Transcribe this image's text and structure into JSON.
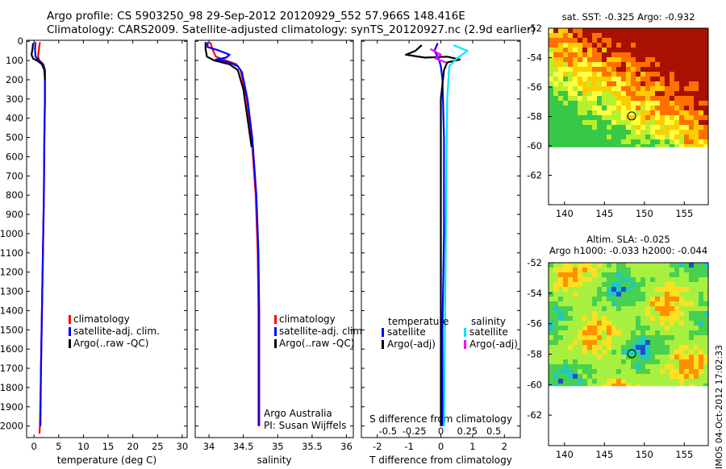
{
  "title_line1": "Argo profile: CS 5903250_98 29-Sep-2012 20120929_552 57.966S 148.416E",
  "title_line2": "Climatology: CARS2009. Satellite-adjusted climatology: synTS_20120927.nc (2.9d earlier)",
  "watermark": "IMOS 04-Oct-2012 17:02:33",
  "colors": {
    "climatology": "#ff0000",
    "satellite": "#0000ff",
    "argo": "#000000",
    "salinity_satellite": "#00e5ff",
    "salinity_argo": "#ff00ff"
  },
  "chart_data": [
    {
      "type": "line",
      "name": "temperature",
      "xlabel": "temperature (deg C)",
      "ylabel": "",
      "xlim": [
        -1.5,
        31
      ],
      "ylim": [
        2060,
        -5
      ],
      "xticks": [
        0,
        5,
        10,
        15,
        20,
        25,
        30
      ],
      "yticks": [
        0,
        100,
        200,
        300,
        400,
        500,
        600,
        700,
        800,
        900,
        1000,
        1100,
        1200,
        1300,
        1400,
        1500,
        1600,
        1700,
        1800,
        1900,
        2000
      ],
      "legend": [
        "climatology",
        "satellite-adj. clim.",
        "Argo(..raw -QC)"
      ],
      "series": [
        {
          "name": "climatology",
          "points": [
            [
              1.2,
              5
            ],
            [
              1.0,
              40
            ],
            [
              0.8,
              80
            ],
            [
              1.1,
              100
            ],
            [
              1.9,
              120
            ],
            [
              2.2,
              150
            ],
            [
              2.2,
              300
            ],
            [
              2.1,
              500
            ],
            [
              2.0,
              800
            ],
            [
              1.8,
              1100
            ],
            [
              1.6,
              1400
            ],
            [
              1.4,
              1700
            ],
            [
              1.2,
              2000
            ],
            [
              1.1,
              2040
            ]
          ]
        },
        {
          "name": "satellite-adj. clim.",
          "points": [
            [
              0.3,
              5
            ],
            [
              0.2,
              40
            ],
            [
              0.3,
              80
            ],
            [
              1.0,
              100
            ],
            [
              1.8,
              120
            ],
            [
              2.2,
              150
            ],
            [
              2.2,
              300
            ],
            [
              2.1,
              500
            ],
            [
              2.0,
              800
            ],
            [
              1.8,
              1100
            ],
            [
              1.6,
              1400
            ],
            [
              1.4,
              1700
            ],
            [
              1.3,
              2000
            ]
          ]
        },
        {
          "name": "Argo(..raw -QC)",
          "points": [
            [
              -0.2,
              10
            ],
            [
              -0.3,
              40
            ],
            [
              -0.5,
              70
            ],
            [
              -0.2,
              90
            ],
            [
              0.6,
              100
            ],
            [
              1.6,
              120
            ],
            [
              2.1,
              150
            ],
            [
              2.2,
              200
            ]
          ]
        }
      ]
    },
    {
      "type": "line",
      "name": "salinity",
      "xlabel": "salinity",
      "ylabel": "",
      "xlim": [
        33.8,
        36.1
      ],
      "ylim": [
        2060,
        -5
      ],
      "xticks": [
        34,
        34.5,
        35,
        35.5,
        36
      ],
      "legend": [
        "climatology",
        "satellite-adj. clim.",
        "Argo(..raw -QC)"
      ],
      "annotation": [
        "Argo Australia",
        "PI: Susan Wijffels"
      ],
      "series": [
        {
          "name": "climatology",
          "points": [
            [
              34.02,
              5
            ],
            [
              34.05,
              40
            ],
            [
              34.1,
              80
            ],
            [
              34.25,
              100
            ],
            [
              34.4,
              120
            ],
            [
              34.46,
              150
            ],
            [
              34.55,
              300
            ],
            [
              34.62,
              500
            ],
            [
              34.68,
              800
            ],
            [
              34.71,
              1100
            ],
            [
              34.72,
              1400
            ],
            [
              34.72,
              1700
            ],
            [
              34.72,
              2000
            ]
          ]
        },
        {
          "name": "satellite-adj. clim.",
          "points": [
            [
              33.98,
              5
            ],
            [
              33.98,
              30
            ],
            [
              34.12,
              45
            ],
            [
              34.3,
              70
            ],
            [
              34.25,
              85
            ],
            [
              34.1,
              95
            ],
            [
              34.3,
              110
            ],
            [
              34.42,
              130
            ],
            [
              34.48,
              160
            ],
            [
              34.56,
              300
            ],
            [
              34.63,
              500
            ],
            [
              34.69,
              800
            ],
            [
              34.72,
              1100
            ],
            [
              34.73,
              1400
            ],
            [
              34.73,
              1700
            ],
            [
              34.73,
              2000
            ]
          ]
        },
        {
          "name": "Argo(..raw -QC)",
          "points": [
            [
              33.95,
              5
            ],
            [
              33.95,
              40
            ],
            [
              33.97,
              80
            ],
            [
              34.08,
              100
            ],
            [
              34.3,
              120
            ],
            [
              34.42,
              150
            ],
            [
              34.5,
              250
            ],
            [
              34.56,
              400
            ],
            [
              34.62,
              550
            ]
          ]
        }
      ]
    },
    {
      "type": "line",
      "name": "differences",
      "xlabel": "T difference from climatology",
      "xlabel2": "S difference from climatology",
      "xlim": [
        -2.5,
        2.5
      ],
      "xticks": [
        -2,
        -1,
        0,
        1,
        2
      ],
      "x2lim": [
        -0.75,
        0.75
      ],
      "x2ticks": [
        -0.5,
        -0.25,
        0,
        0.25,
        0.5
      ],
      "x2ticklabels": [
        "-0.5",
        "-0.25",
        "0",
        "0.25",
        "0.5"
      ],
      "ylim": [
        2060,
        -5
      ],
      "legend_titles": [
        "temperature",
        "salinity"
      ],
      "legend": [
        "satellite",
        "Argo(-adj)",
        "satellite",
        "Argo(-adj)"
      ],
      "series": [
        {
          "name": "temperature satellite",
          "points": [
            [
              -0.1,
              10
            ],
            [
              -0.2,
              50
            ],
            [
              -0.1,
              80
            ],
            [
              -0.05,
              100
            ],
            [
              0.0,
              130
            ],
            [
              0.05,
              200
            ],
            [
              0.1,
              500
            ],
            [
              0.1,
              1000
            ],
            [
              0.05,
              1500
            ],
            [
              0.05,
              2000
            ]
          ]
        },
        {
          "name": "temperature Argo(-adj)",
          "points": [
            [
              -0.6,
              20
            ],
            [
              -0.8,
              50
            ],
            [
              -1.1,
              70
            ],
            [
              -0.5,
              85
            ],
            [
              0.2,
              80
            ],
            [
              0.6,
              95
            ],
            [
              0.2,
              110
            ],
            [
              0.1,
              150
            ],
            [
              0.0,
              300
            ],
            [
              0.0,
              1400
            ],
            [
              0.0,
              2000
            ]
          ]
        },
        {
          "name": "salinity satellite",
          "points": [
            [
              0.12,
              20
            ],
            [
              0.25,
              50
            ],
            [
              0.15,
              90
            ],
            [
              0.08,
              130
            ],
            [
              0.06,
              300
            ],
            [
              0.05,
              800
            ],
            [
              0.04,
              1400
            ],
            [
              0.03,
              2000
            ]
          ]
        },
        {
          "name": "salinity Argo(-adj)",
          "points": [
            [
              -0.1,
              40
            ],
            [
              0.0,
              70
            ],
            [
              -0.05,
              90
            ],
            [
              0.05,
              110
            ]
          ]
        }
      ]
    },
    {
      "type": "heatmap",
      "name": "sat-sst",
      "title": "sat. SST: -0.325  Argo: -0.932",
      "xlim": [
        138,
        158
      ],
      "ylim": [
        -64,
        -52
      ],
      "xticks": [
        140,
        145,
        150,
        155
      ],
      "yticks": [
        -52,
        -54,
        -56,
        -58,
        -60,
        -62
      ],
      "marker": {
        "lon": 148.416,
        "lat": -57.966
      }
    },
    {
      "type": "heatmap",
      "name": "altim-sla",
      "title": "Altim. SLA: -0.025",
      "subtitle": "Argo h1000: -0.033 h2000: -0.044",
      "xlim": [
        138,
        158
      ],
      "ylim": [
        -64,
        -52
      ],
      "xticks": [
        140,
        145,
        150,
        155
      ],
      "yticks": [
        -52,
        -54,
        -56,
        -58,
        -60,
        -62
      ],
      "marker": {
        "lon": 148.416,
        "lat": -57.966
      }
    }
  ]
}
